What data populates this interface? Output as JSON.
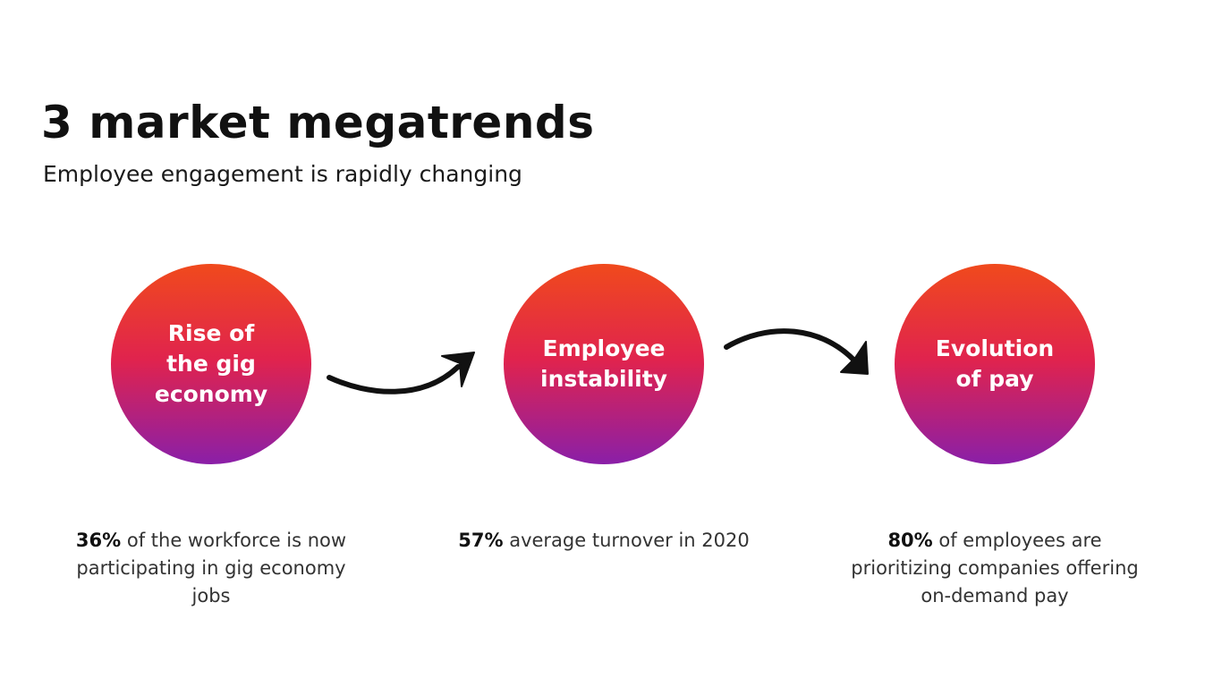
{
  "slide": {
    "title": "3 market megatrends",
    "subtitle": "Employee engagement is rapidly changing"
  },
  "style": {
    "gradient_top": "#f04a1c",
    "gradient_middle": "#e0234e",
    "gradient_bottom": "#8a1fa8",
    "arrow_color": "#111111"
  },
  "trends": [
    {
      "label_lines": [
        "Rise of",
        "the gig",
        "economy"
      ],
      "stat_value": "36%",
      "stat_text": "of the workforce is now participating in gig economy jobs"
    },
    {
      "label_lines": [
        "Employee",
        "instability"
      ],
      "stat_value": "57%",
      "stat_text": "average turnover in 2020"
    },
    {
      "label_lines": [
        "Evolution",
        "of pay"
      ],
      "stat_value": "80%",
      "stat_text": "of employees are prioritizing companies offering on-demand pay"
    }
  ],
  "arrows": [
    {
      "from": 0,
      "to": 1,
      "icon": "curved-arrow-up-right-icon"
    },
    {
      "from": 1,
      "to": 2,
      "icon": "curved-arrow-down-right-icon"
    }
  ]
}
